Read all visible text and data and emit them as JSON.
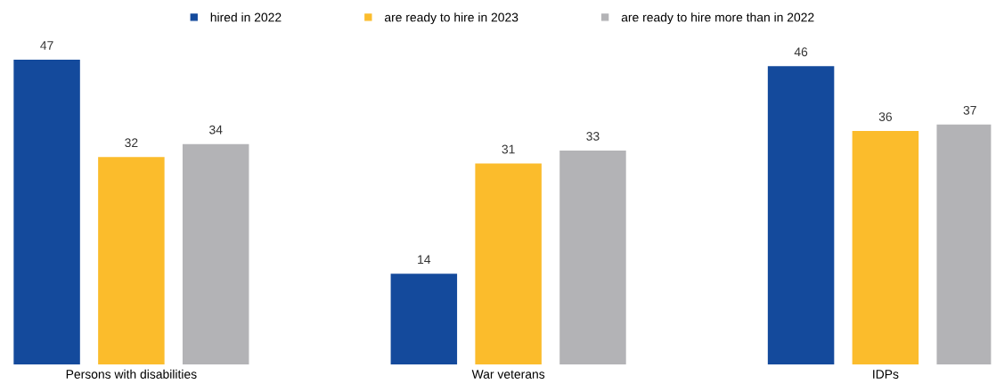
{
  "chart_data": {
    "type": "bar",
    "categories": [
      "Persons with disabilities",
      "War veterans",
      "IDPs"
    ],
    "series": [
      {
        "name": "hired in 2022",
        "color": "#144a9c",
        "values": [
          47,
          14,
          46
        ]
      },
      {
        "name": "are ready to hire in 2023",
        "color": "#fbbc2c",
        "values": [
          32,
          31,
          36
        ]
      },
      {
        "name": "are ready to hire more than in 2022",
        "color": "#b3b3b6",
        "values": [
          34,
          33,
          37
        ]
      }
    ],
    "data_labels": true,
    "legend": "top",
    "grid": false
  }
}
